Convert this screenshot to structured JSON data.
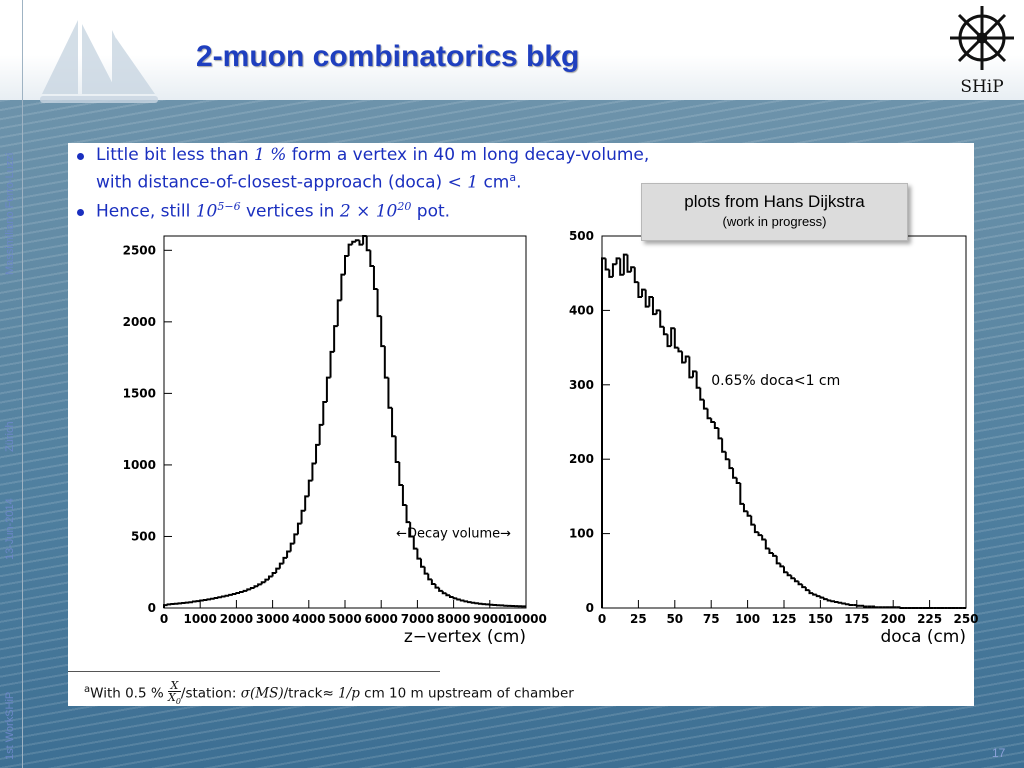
{
  "slide": {
    "title": "2-muon combinatorics bkg",
    "page_number": "17",
    "sidebar": {
      "author": "Massimiliano Ferro-Luzzi",
      "location": "Zürich",
      "date": "13-Jun-2014",
      "event": "1st WorkSHiP"
    },
    "logo_text": "SHiP",
    "bullets": [
      {
        "line1_a": "Little bit less than ",
        "line1_math": "1 %",
        "line1_b": " form a vertex in 40 m long decay-volume,",
        "line2_a": "with distance-of-closest-approach (doca) ",
        "line2_math": "< 1",
        "line2_b": " cm",
        "line2_sup": "a",
        "line2_c": "."
      },
      {
        "a": "Hence, still ",
        "math1": "10",
        "math1_sup": "5−6",
        "b": " vertices in ",
        "math2": "2 × 10",
        "math2_sup": "20",
        "c": " pot."
      }
    ],
    "note": {
      "title": "plots from Hans Dijkstra",
      "subtitle": "(work in progress)"
    },
    "footnote": {
      "marker": "a",
      "text_a": "With 0.5 % ",
      "frac_num": "X",
      "frac_den": "X",
      "frac_den_sub": "0",
      "text_b": "/station: ",
      "math1": "σ(MS)",
      "text_c": "/track≈ ",
      "math2": "1/p",
      "text_d": " cm 10 m upstream of chamber"
    }
  },
  "chart_data": [
    {
      "type": "area",
      "style": "step-histogram",
      "xlabel": "z−vertex (cm)",
      "ylabel": "",
      "xlim": [
        0,
        10000
      ],
      "ylim": [
        0,
        2600
      ],
      "xticks": [
        0,
        1000,
        2000,
        3000,
        4000,
        5000,
        6000,
        7000,
        8000,
        9000,
        10000
      ],
      "xtick_labels": [
        "0",
        "1000",
        "2000",
        "3000",
        "4000",
        "5000",
        "6000",
        "7000",
        "8000",
        "9000",
        "10000"
      ],
      "yticks": [
        0,
        500,
        1000,
        1500,
        2000,
        2500
      ],
      "ytick_labels": [
        "0",
        "500",
        "1000",
        "1500",
        "2000",
        "2500"
      ],
      "annotation": "←Decay volume→",
      "annotation_range": [
        6000,
        10000
      ],
      "annotation_y": 520,
      "x": [
        0,
        100,
        200,
        300,
        400,
        500,
        600,
        700,
        800,
        900,
        1000,
        1100,
        1200,
        1300,
        1400,
        1500,
        1600,
        1700,
        1800,
        1900,
        2000,
        2100,
        2200,
        2300,
        2400,
        2500,
        2600,
        2700,
        2800,
        2900,
        3000,
        3100,
        3200,
        3300,
        3400,
        3500,
        3600,
        3700,
        3800,
        3900,
        4000,
        4100,
        4200,
        4300,
        4400,
        4500,
        4600,
        4700,
        4800,
        4900,
        5000,
        5100,
        5200,
        5300,
        5400,
        5500,
        5600,
        5700,
        5800,
        5900,
        6000,
        6100,
        6200,
        6300,
        6400,
        6500,
        6600,
        6700,
        6800,
        6900,
        7000,
        7100,
        7200,
        7300,
        7400,
        7500,
        7600,
        7700,
        7800,
        7900,
        8000,
        8100,
        8200,
        8300,
        8400,
        8500,
        8600,
        8700,
        8800,
        8900,
        9000,
        9100,
        9200,
        9300,
        9400,
        9500,
        9600,
        9700,
        9800,
        9900
      ],
      "values": [
        20,
        25,
        28,
        30,
        32,
        35,
        38,
        40,
        45,
        48,
        52,
        56,
        60,
        65,
        70,
        75,
        80,
        86,
        92,
        98,
        105,
        112,
        120,
        130,
        140,
        152,
        165,
        180,
        198,
        220,
        245,
        275,
        310,
        350,
        395,
        450,
        515,
        590,
        680,
        780,
        890,
        1010,
        1140,
        1280,
        1440,
        1610,
        1790,
        1970,
        2150,
        2330,
        2460,
        2540,
        2560,
        2570,
        2540,
        2600,
        2500,
        2390,
        2230,
        2040,
        1830,
        1610,
        1400,
        1200,
        1020,
        860,
        720,
        600,
        500,
        415,
        345,
        288,
        240,
        200,
        168,
        142,
        120,
        103,
        89,
        77,
        67,
        59,
        52,
        46,
        41,
        37,
        33,
        30,
        27,
        25,
        23,
        21,
        19,
        18,
        16,
        15,
        14,
        13,
        12,
        11
      ]
    },
    {
      "type": "area",
      "style": "step-histogram",
      "xlabel": "doca (cm)",
      "ylabel": "",
      "xlim": [
        0,
        250
      ],
      "ylim": [
        0,
        500
      ],
      "xticks": [
        0,
        25,
        50,
        75,
        100,
        125,
        150,
        175,
        200,
        225,
        250
      ],
      "xtick_labels": [
        "0",
        "25",
        "50",
        "75",
        "100",
        "125",
        "150",
        "175",
        "200",
        "225",
        "250"
      ],
      "yticks": [
        0,
        100,
        200,
        300,
        400,
        500
      ],
      "ytick_labels": [
        "0",
        "100",
        "200",
        "300",
        "400",
        "500"
      ],
      "annotation": "0.65% doca<1 cm",
      "annotation_pos": [
        75,
        300
      ],
      "x": [
        0,
        2.5,
        5,
        7.5,
        10,
        12.5,
        15,
        17.5,
        20,
        22.5,
        25,
        27.5,
        30,
        32.5,
        35,
        37.5,
        40,
        42.5,
        45,
        47.5,
        50,
        52.5,
        55,
        57.5,
        60,
        62.5,
        65,
        67.5,
        70,
        72.5,
        75,
        77.5,
        80,
        82.5,
        85,
        87.5,
        90,
        92.5,
        95,
        97.5,
        100,
        102.5,
        105,
        107.5,
        110,
        112.5,
        115,
        117.5,
        120,
        122.5,
        125,
        127.5,
        130,
        132.5,
        135,
        137.5,
        140,
        142.5,
        145,
        147.5,
        150,
        152.5,
        155,
        157.5,
        160,
        162.5,
        165,
        167.5,
        170,
        172.5,
        175,
        177.5,
        180,
        182.5,
        185,
        187.5,
        190,
        192.5,
        195,
        197.5,
        200,
        202.5,
        205,
        207.5,
        210,
        212.5,
        215,
        217.5,
        220,
        222.5,
        225,
        227.5,
        230,
        232.5,
        235,
        237.5,
        240,
        242.5,
        245,
        247.5
      ],
      "values": [
        470,
        455,
        445,
        462,
        470,
        448,
        475,
        452,
        458,
        438,
        418,
        428,
        405,
        418,
        395,
        400,
        378,
        368,
        352,
        376,
        350,
        345,
        330,
        338,
        310,
        318,
        296,
        280,
        268,
        255,
        250,
        242,
        228,
        210,
        200,
        188,
        175,
        168,
        140,
        130,
        124,
        112,
        102,
        98,
        92,
        80,
        74,
        70,
        60,
        56,
        48,
        44,
        40,
        36,
        32,
        28,
        24,
        20,
        18,
        16,
        14,
        12,
        10,
        9,
        8,
        7,
        6,
        5,
        4,
        4,
        3,
        3,
        2,
        2,
        2,
        1,
        1,
        1,
        1,
        1,
        1,
        1,
        0,
        0,
        0,
        0,
        0,
        0,
        0,
        0,
        0,
        0,
        0,
        0,
        0,
        0,
        0,
        0,
        0,
        0
      ]
    }
  ]
}
